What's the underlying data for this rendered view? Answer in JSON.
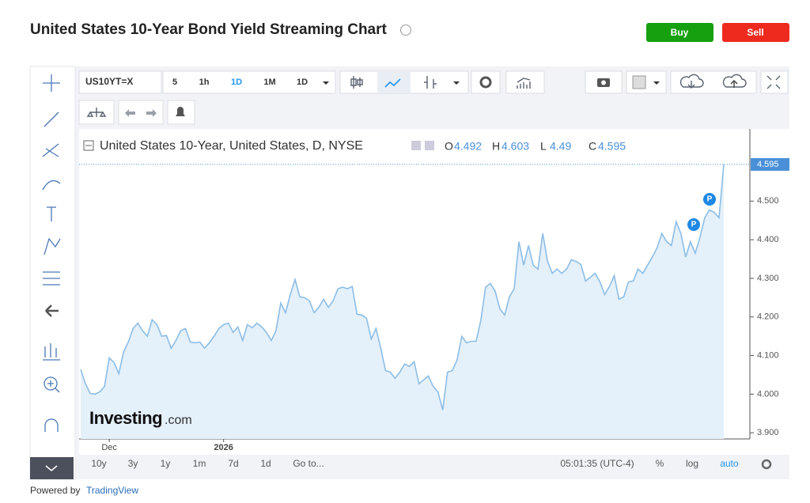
{
  "header": {
    "title": "United States 10-Year Bond Yield Streaming Chart",
    "buy": "Buy",
    "sell": "Sell"
  },
  "toolbar": {
    "symbol": "US10YT=X",
    "intervals": [
      "5",
      "1h",
      "1D",
      "1M"
    ],
    "range": "1D"
  },
  "bottom_bar": {
    "ranges": [
      "10y",
      "3y",
      "1y",
      "1m",
      "7d",
      "1d"
    ],
    "goto": "Go to...",
    "clock": "05:01:35 (UTC-4)",
    "percent": "%",
    "log": "log",
    "auto": "auto"
  },
  "watermark": {
    "brand": "Investing",
    "suffix": ".com"
  },
  "footer": {
    "prefix": "Powered by",
    "link": "TradingView"
  },
  "chart_data": {
    "type": "line",
    "legend_title": "United States 10-Year, United States, D, NYSE",
    "ohlc": [
      {
        "label": "O",
        "value": 4.492
      },
      {
        "label": "H",
        "value": 4.603
      },
      {
        "label": "L",
        "value": 4.49
      },
      {
        "label": "C",
        "value": 4.595
      }
    ],
    "markers": [
      "P",
      "P"
    ],
    "color": "#8cbde6",
    "fill": "#e4f0fa",
    "categories": [
      null,
      null,
      null,
      null,
      null,
      null,
      "Dec",
      null,
      null,
      null,
      null,
      null,
      null,
      null,
      null,
      null,
      null,
      null,
      null,
      null,
      null,
      null,
      null,
      null,
      null,
      null,
      null,
      null,
      null,
      null,
      "2026",
      null,
      null,
      null,
      null,
      null,
      null,
      null,
      null,
      null,
      null,
      null,
      null,
      null,
      null,
      null,
      null,
      null,
      null,
      null,
      null,
      null,
      null,
      null,
      null,
      null,
      null,
      null,
      null,
      null,
      null,
      null,
      null,
      null,
      null,
      null,
      null,
      null,
      null,
      null,
      null,
      null,
      null,
      null,
      null,
      null,
      null,
      null,
      null,
      null,
      null,
      null,
      null,
      null,
      null,
      null,
      null,
      null,
      null,
      null,
      null,
      null,
      null,
      null,
      null,
      null,
      null,
      null,
      null,
      null,
      null,
      null,
      null,
      null,
      null,
      null,
      null,
      null,
      null,
      null,
      null,
      null,
      null,
      null,
      null,
      null,
      null,
      null,
      null,
      null,
      null,
      null,
      null,
      null,
      null,
      null,
      null,
      null,
      null,
      null,
      null,
      null,
      null,
      null,
      null,
      null
    ],
    "values": [
      4.064,
      4.027,
      4.002,
      4.0,
      4.006,
      4.02,
      4.094,
      4.082,
      4.053,
      4.109,
      4.135,
      4.17,
      4.184,
      4.164,
      4.15,
      4.193,
      4.18,
      4.15,
      4.152,
      4.119,
      4.139,
      4.164,
      4.17,
      4.135,
      4.133,
      4.135,
      4.119,
      4.133,
      4.15,
      4.17,
      4.18,
      4.184,
      4.16,
      4.174,
      4.139,
      4.18,
      4.172,
      4.184,
      4.174,
      4.16,
      4.139,
      4.164,
      4.236,
      4.211,
      4.258,
      4.297,
      4.252,
      4.25,
      4.242,
      4.211,
      4.225,
      4.246,
      4.225,
      4.242,
      4.273,
      4.277,
      4.273,
      4.279,
      4.207,
      4.205,
      4.197,
      4.143,
      4.17,
      4.119,
      4.061,
      4.057,
      4.041,
      4.057,
      4.078,
      4.072,
      4.084,
      4.027,
      4.037,
      4.047,
      4.02,
      4.006,
      3.959,
      4.057,
      4.061,
      4.088,
      4.15,
      4.133,
      4.137,
      4.137,
      4.191,
      4.277,
      4.287,
      4.267,
      4.221,
      4.205,
      4.252,
      4.273,
      4.395,
      4.334,
      4.385,
      4.334,
      4.324,
      4.416,
      4.344,
      4.313,
      4.324,
      4.313,
      4.324,
      4.348,
      4.344,
      4.336,
      4.293,
      4.303,
      4.313,
      4.291,
      4.258,
      4.279,
      4.307,
      4.246,
      4.252,
      4.291,
      4.293,
      4.324,
      4.313,
      4.334,
      4.355,
      4.379,
      4.416,
      4.395,
      4.385,
      4.447,
      4.416,
      4.355,
      4.395,
      4.365,
      4.406,
      4.457,
      4.477,
      4.471,
      4.457,
      4.595
    ],
    "ylim": [
      3.884,
      4.687
    ],
    "yticks": [
      {
        "value": 3.9,
        "label": "3.900"
      },
      {
        "value": 4.0,
        "label": "4.000"
      },
      {
        "value": 4.1,
        "label": "4.100"
      },
      {
        "value": 4.2,
        "label": "4.200"
      },
      {
        "value": 4.3,
        "label": "4.300"
      },
      {
        "value": 4.4,
        "label": "4.400"
      },
      {
        "value": 4.5,
        "label": "4.500"
      }
    ]
  }
}
